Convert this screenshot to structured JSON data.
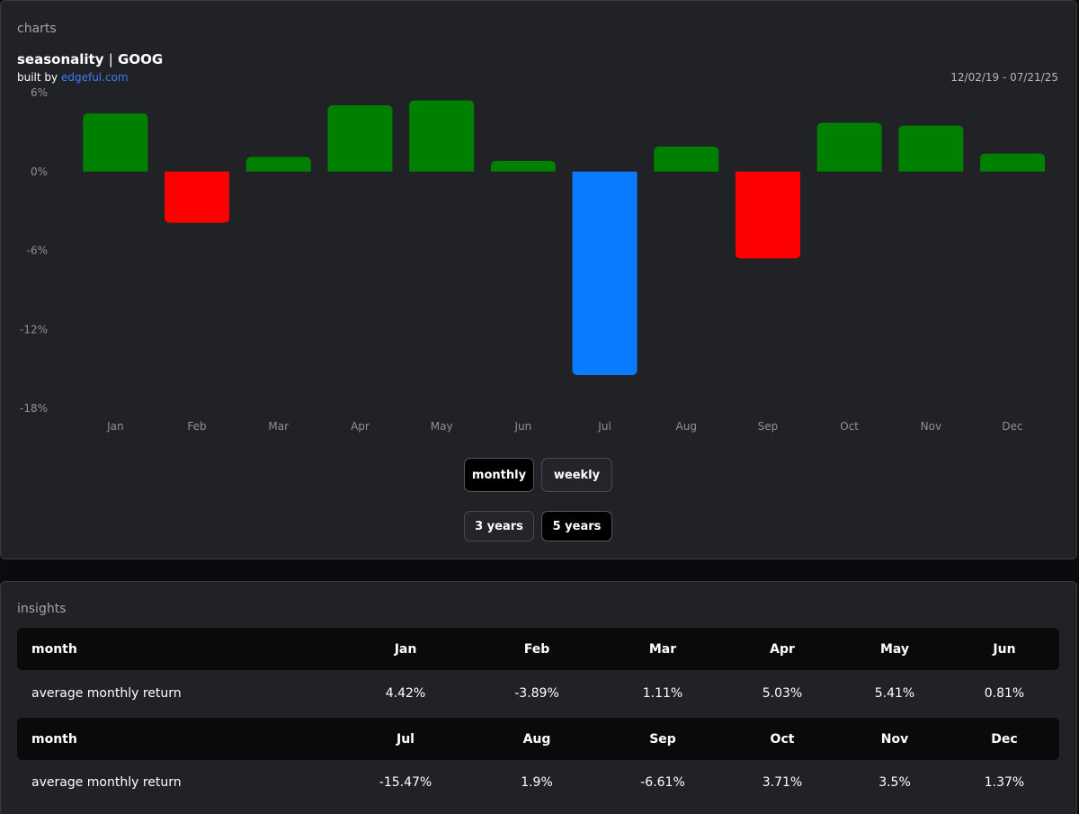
{
  "charts": {
    "section_label": "charts",
    "title_main": "seasonality",
    "title_sep": "|",
    "title_ticker": "GOOG",
    "built_by_prefix": "built by",
    "built_by_link": "edgeful.com",
    "date_range": "12/02/19 - 07/21/25",
    "buttons": {
      "monthly": "monthly",
      "weekly": "weekly",
      "three_years": "3 years",
      "five_years": "5 years"
    },
    "active_period": "monthly",
    "active_range": "5 years"
  },
  "chart_data": {
    "type": "bar",
    "categories": [
      "Jan",
      "Feb",
      "Mar",
      "Apr",
      "May",
      "Jun",
      "Jul",
      "Aug",
      "Sep",
      "Oct",
      "Nov",
      "Dec"
    ],
    "values": [
      4.42,
      -3.89,
      1.11,
      5.03,
      5.41,
      0.81,
      -15.47,
      1.9,
      -6.61,
      3.71,
      3.5,
      1.37
    ],
    "ylim": [
      -18,
      6
    ],
    "y_ticks": [
      6,
      0,
      -6,
      -12,
      -18
    ],
    "y_tick_labels": [
      "6%",
      "0%",
      "-6%",
      "-12%",
      "-18%"
    ],
    "highlight_index": 6,
    "colors": {
      "positive": "#008000",
      "negative": "#ff0000",
      "highlight": "#0a7aff"
    },
    "grid": false,
    "legend": "none"
  },
  "insights": {
    "section_label": "insights",
    "rows": [
      {
        "header_label": "month",
        "months": [
          "Jan",
          "Feb",
          "Mar",
          "Apr",
          "May",
          "Jun"
        ],
        "value_label": "average monthly return",
        "values": [
          "4.42%",
          "-3.89%",
          "1.11%",
          "5.03%",
          "5.41%",
          "0.81%"
        ]
      },
      {
        "header_label": "month",
        "months": [
          "Jul",
          "Aug",
          "Sep",
          "Oct",
          "Nov",
          "Dec"
        ],
        "value_label": "average monthly return",
        "values": [
          "-15.47%",
          "1.9%",
          "-6.61%",
          "3.71%",
          "3.5%",
          "1.37%"
        ]
      }
    ]
  }
}
